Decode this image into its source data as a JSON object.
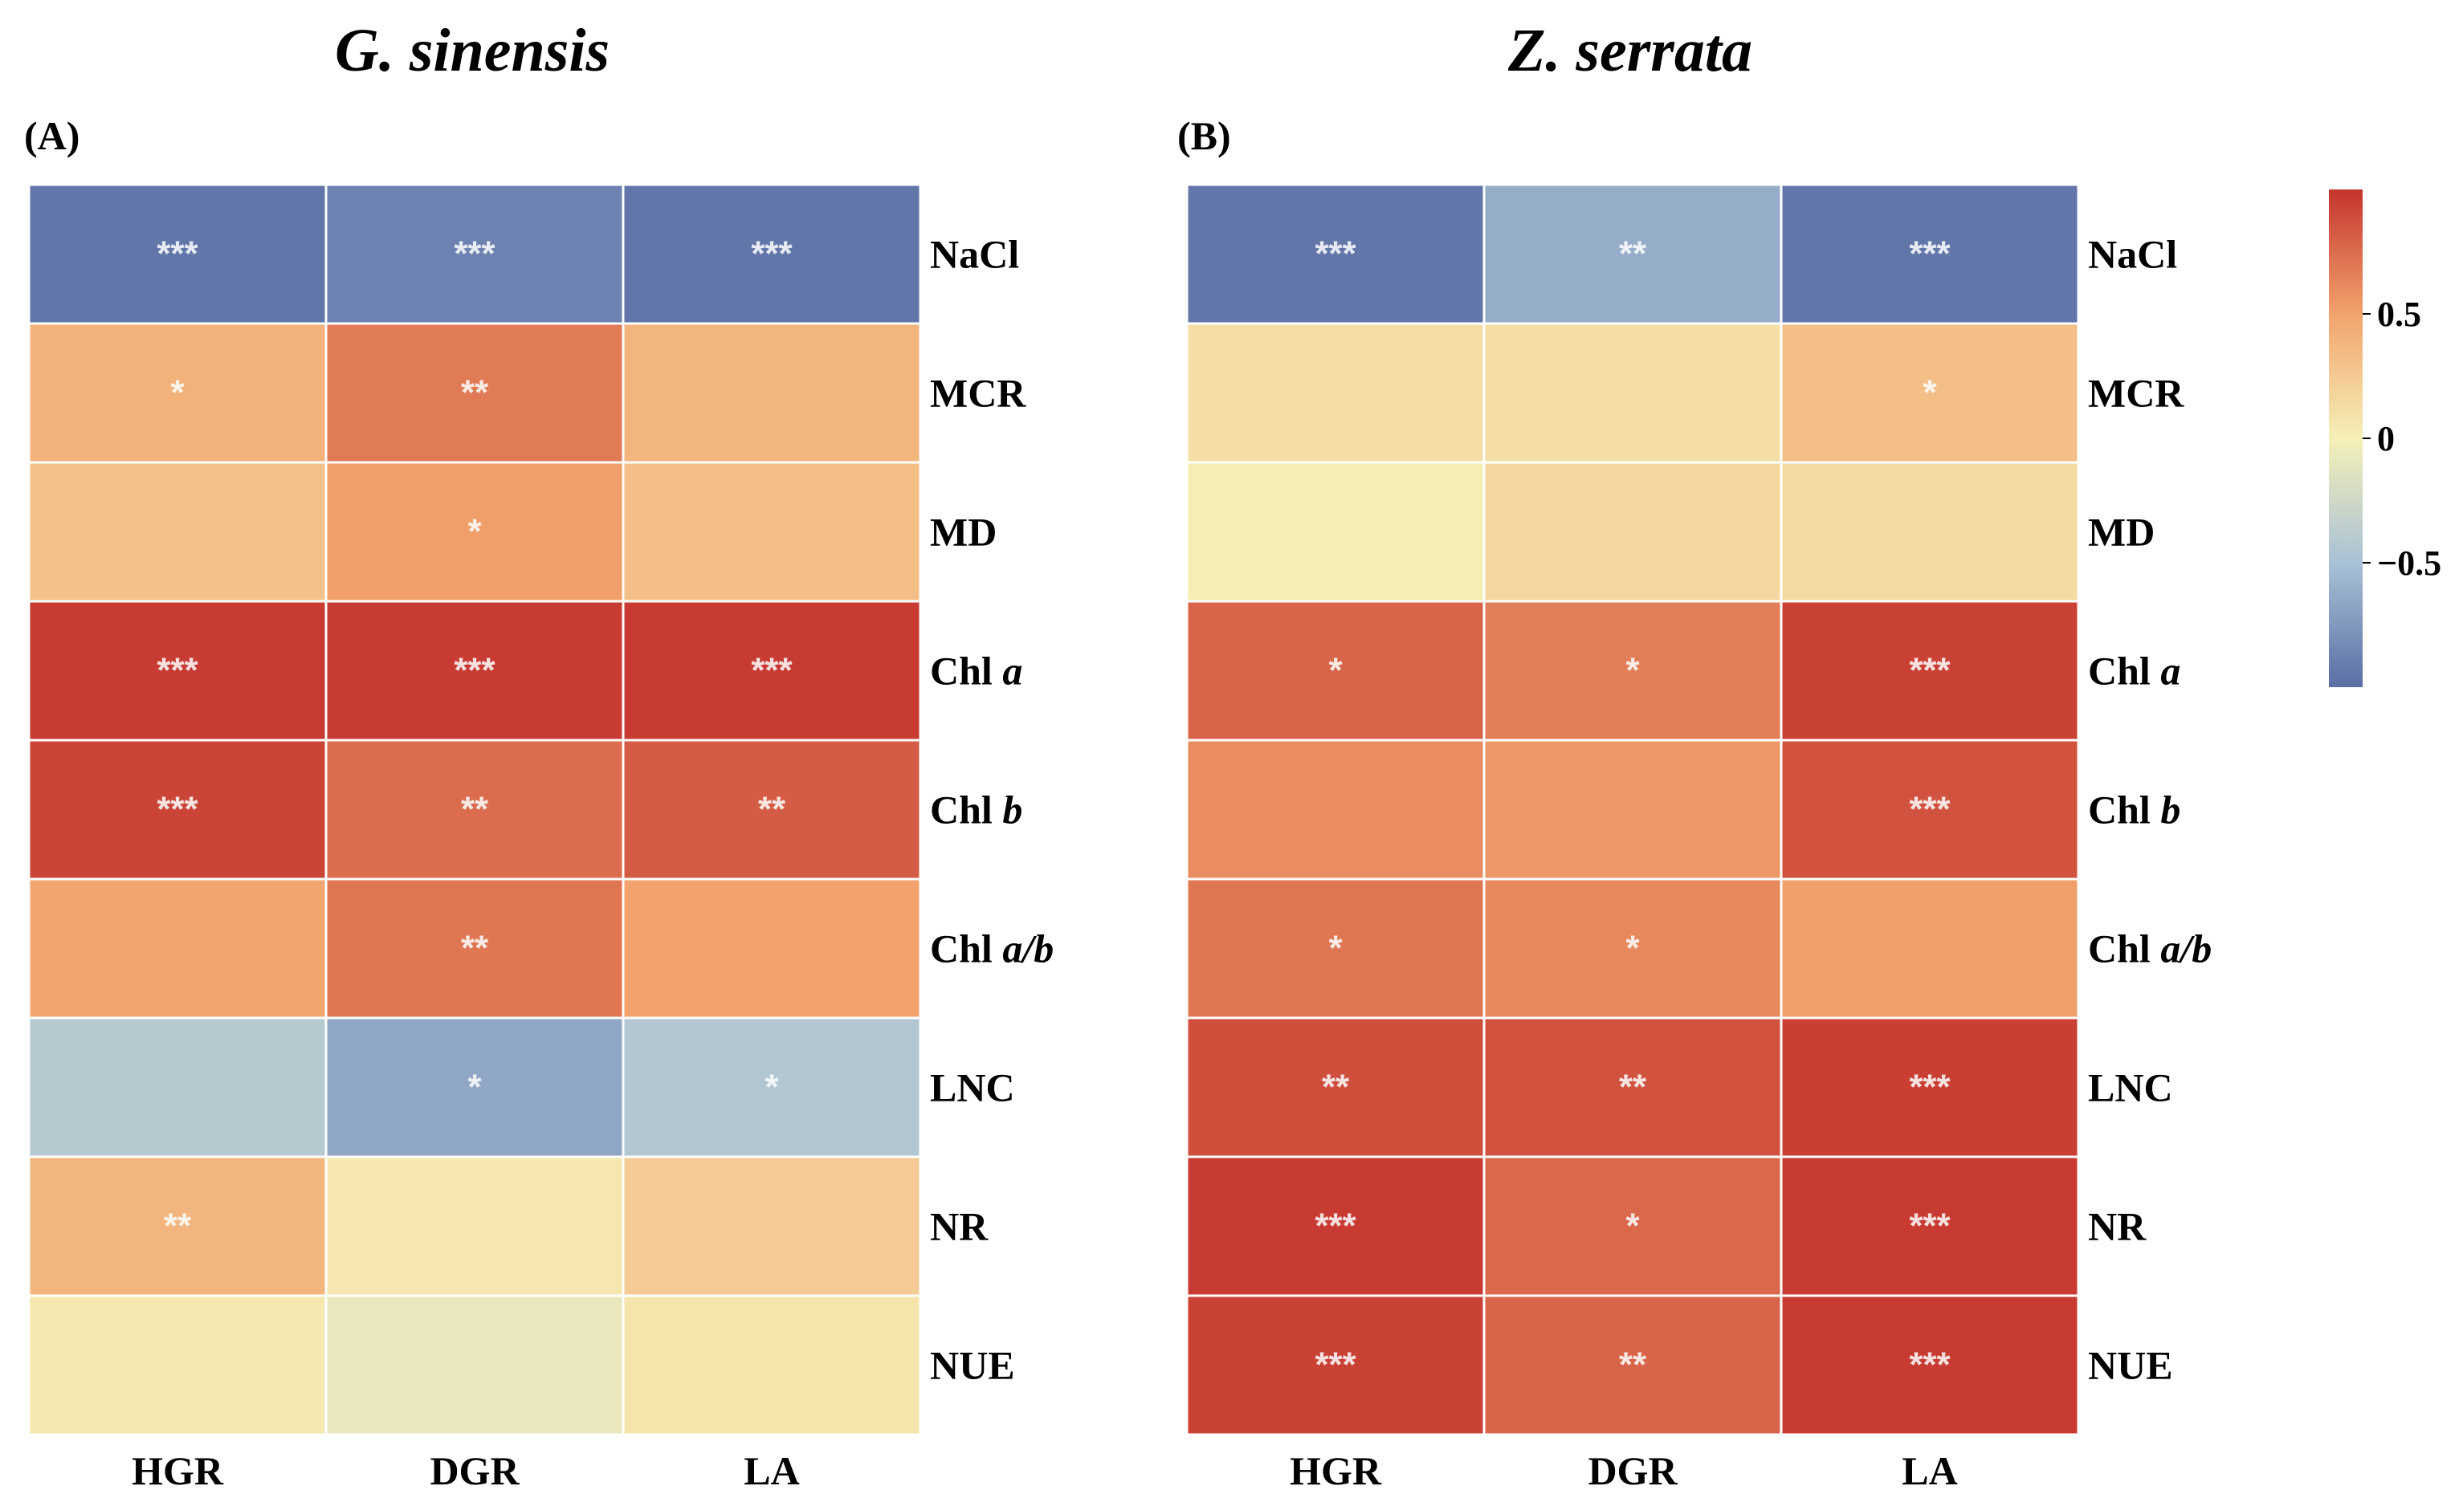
{
  "chart_data": [
    {
      "type": "heatmap",
      "title": "G. sinensis",
      "panel_label": "(A)",
      "columns": [
        "HGR",
        "DGR",
        "LA"
      ],
      "rows": [
        {
          "label": "NaCl",
          "italic": "",
          "sep": ""
        },
        {
          "label": "MCR",
          "italic": "",
          "sep": ""
        },
        {
          "label": "MD",
          "italic": "",
          "sep": ""
        },
        {
          "label": "Chl",
          "italic": "a",
          "sep": " "
        },
        {
          "label": "Chl",
          "italic": "b",
          "sep": " "
        },
        {
          "label": "Chl",
          "italic": "a/b",
          "sep": " "
        },
        {
          "label": "LNC",
          "italic": "",
          "sep": ""
        },
        {
          "label": "NR",
          "italic": "",
          "sep": ""
        },
        {
          "label": "NUE",
          "italic": "",
          "sep": ""
        }
      ],
      "values": [
        [
          -0.95,
          -0.88,
          -0.95
        ],
        [
          0.4,
          0.68,
          0.38
        ],
        [
          0.3,
          0.52,
          0.32
        ],
        [
          0.97,
          0.97,
          0.97
        ],
        [
          0.93,
          0.75,
          0.82
        ],
        [
          0.48,
          0.7,
          0.5
        ],
        [
          -0.42,
          -0.66,
          -0.44
        ],
        [
          0.38,
          0.06,
          0.24
        ],
        [
          0.05,
          -0.08,
          0.08
        ]
      ],
      "significance": [
        [
          "***",
          "***",
          "***"
        ],
        [
          "*",
          "**",
          ""
        ],
        [
          "",
          "*",
          ""
        ],
        [
          "***",
          "***",
          "***"
        ],
        [
          "***",
          "**",
          "**"
        ],
        [
          "",
          "**",
          ""
        ],
        [
          "",
          "*",
          "*"
        ],
        [
          "**",
          "",
          ""
        ],
        [
          "",
          "",
          ""
        ]
      ]
    },
    {
      "type": "heatmap",
      "title": "Z. serrata",
      "panel_label": "(B)",
      "columns": [
        "HGR",
        "DGR",
        "LA"
      ],
      "rows": [
        {
          "label": "NaCl",
          "italic": "",
          "sep": ""
        },
        {
          "label": "MCR",
          "italic": "",
          "sep": ""
        },
        {
          "label": "MD",
          "italic": "",
          "sep": ""
        },
        {
          "label": "Chl",
          "italic": "a",
          "sep": " "
        },
        {
          "label": "Chl",
          "italic": "b",
          "sep": " "
        },
        {
          "label": "Chl",
          "italic": "a/b",
          "sep": " "
        },
        {
          "label": "LNC",
          "italic": "",
          "sep": ""
        },
        {
          "label": "NR",
          "italic": "",
          "sep": ""
        },
        {
          "label": "NUE",
          "italic": "",
          "sep": ""
        }
      ],
      "values": [
        [
          -0.95,
          -0.62,
          -0.95
        ],
        [
          0.12,
          0.12,
          0.32
        ],
        [
          0.02,
          0.16,
          0.14
        ],
        [
          0.78,
          0.66,
          0.94
        ],
        [
          0.6,
          0.55,
          0.86
        ],
        [
          0.7,
          0.62,
          0.52
        ],
        [
          0.88,
          0.86,
          0.95
        ],
        [
          0.97,
          0.76,
          0.97
        ],
        [
          0.94,
          0.78,
          0.97
        ]
      ],
      "significance": [
        [
          "***",
          "**",
          "***"
        ],
        [
          "",
          "",
          "*"
        ],
        [
          "",
          "",
          ""
        ],
        [
          "*",
          "*",
          "***"
        ],
        [
          "",
          "",
          "***"
        ],
        [
          "*",
          "*",
          ""
        ],
        [
          "**",
          "**",
          "***"
        ],
        [
          "***",
          "*",
          "***"
        ],
        [
          "***",
          "**",
          "***"
        ]
      ]
    }
  ],
  "colorbar": {
    "range": [
      -1,
      1
    ],
    "ticks": [
      {
        "value": 0.5,
        "label": "0.5"
      },
      {
        "value": 0,
        "label": "0"
      },
      {
        "value": -0.5,
        "label": "−0.5"
      }
    ],
    "stops": [
      {
        "v": -1.0,
        "color": "#5a6ea4"
      },
      {
        "v": -0.5,
        "color": "#a9c1d6"
      },
      {
        "v": 0.0,
        "color": "#f5f0b8"
      },
      {
        "v": 0.5,
        "color": "#f2a36c"
      },
      {
        "v": 1.0,
        "color": "#c4342e"
      }
    ]
  }
}
